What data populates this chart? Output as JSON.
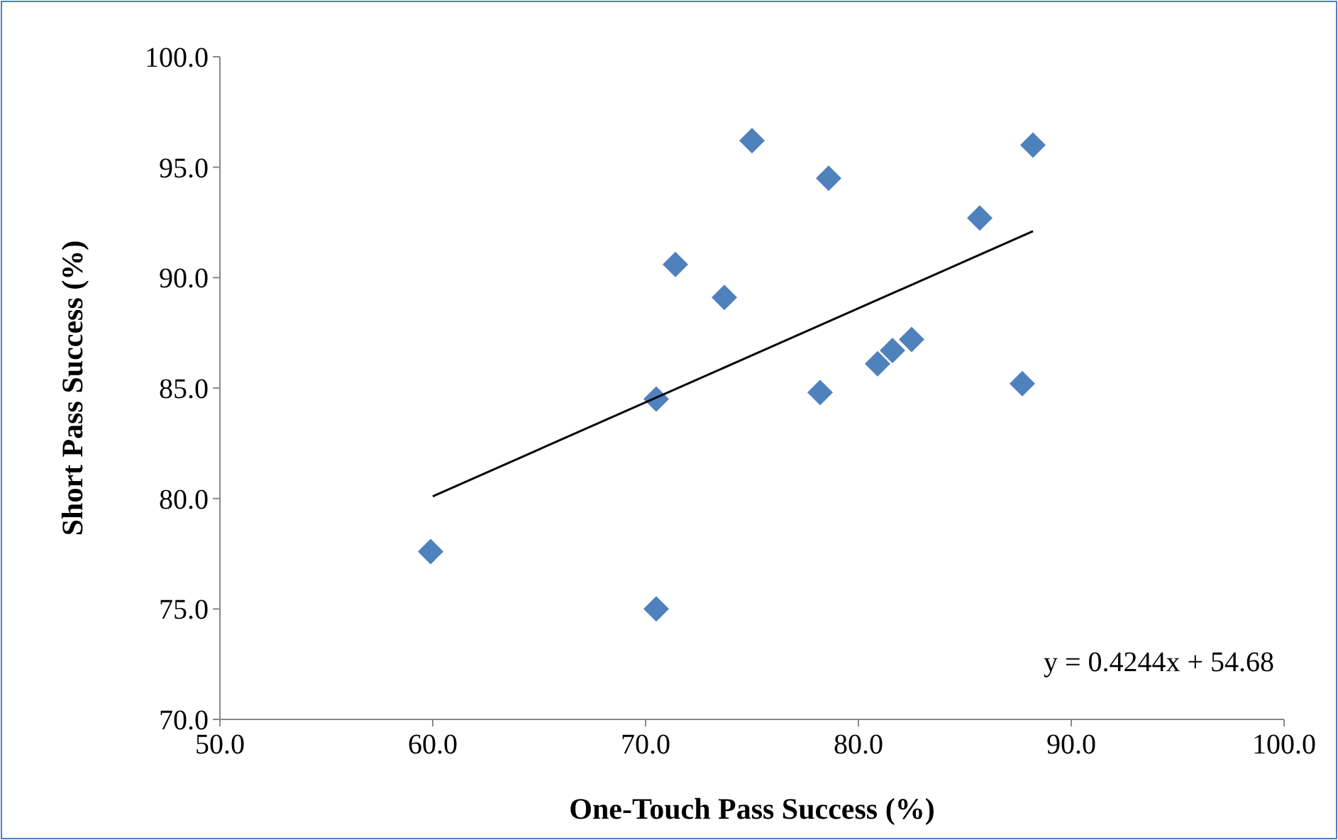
{
  "chart_data": {
    "type": "scatter",
    "xlabel": "One-Touch Pass Success (%)",
    "ylabel": "Short Pass Success (%)",
    "xlim": [
      50,
      100
    ],
    "ylim": [
      70,
      100
    ],
    "xticks": [
      {
        "value": 50,
        "label": "50.0"
      },
      {
        "value": 60,
        "label": "60.0"
      },
      {
        "value": 70,
        "label": "70.0"
      },
      {
        "value": 80,
        "label": "80.0"
      },
      {
        "value": 90,
        "label": "90.0"
      },
      {
        "value": 100,
        "label": "100.0"
      }
    ],
    "yticks": [
      {
        "value": 70,
        "label": "70.0"
      },
      {
        "value": 75,
        "label": "75.0"
      },
      {
        "value": 80,
        "label": "80.0"
      },
      {
        "value": 85,
        "label": "85.0"
      },
      {
        "value": 90,
        "label": "90.0"
      },
      {
        "value": 95,
        "label": "95.0"
      },
      {
        "value": 100,
        "label": "100.0"
      }
    ],
    "grid": false,
    "marker": "diamond",
    "series": [
      {
        "color": "#4f81bd",
        "x": [
          59.9,
          70.5,
          70.5,
          71.4,
          73.7,
          75.0,
          78.2,
          78.6,
          80.9,
          81.6,
          82.5,
          85.7,
          87.7,
          88.2
        ],
        "values": [
          77.6,
          75.0,
          84.5,
          90.6,
          89.1,
          96.2,
          84.8,
          94.5,
          86.1,
          86.7,
          87.2,
          92.7,
          85.2,
          96.0
        ]
      },
      {
        "type": "line",
        "color": "#000000",
        "line_style": "solid",
        "marker": "none",
        "x": [
          60,
          88.2
        ],
        "values": [
          80.1,
          92.1
        ]
      }
    ],
    "annotations": [
      "y = 0.4244x + 54.68"
    ]
  }
}
